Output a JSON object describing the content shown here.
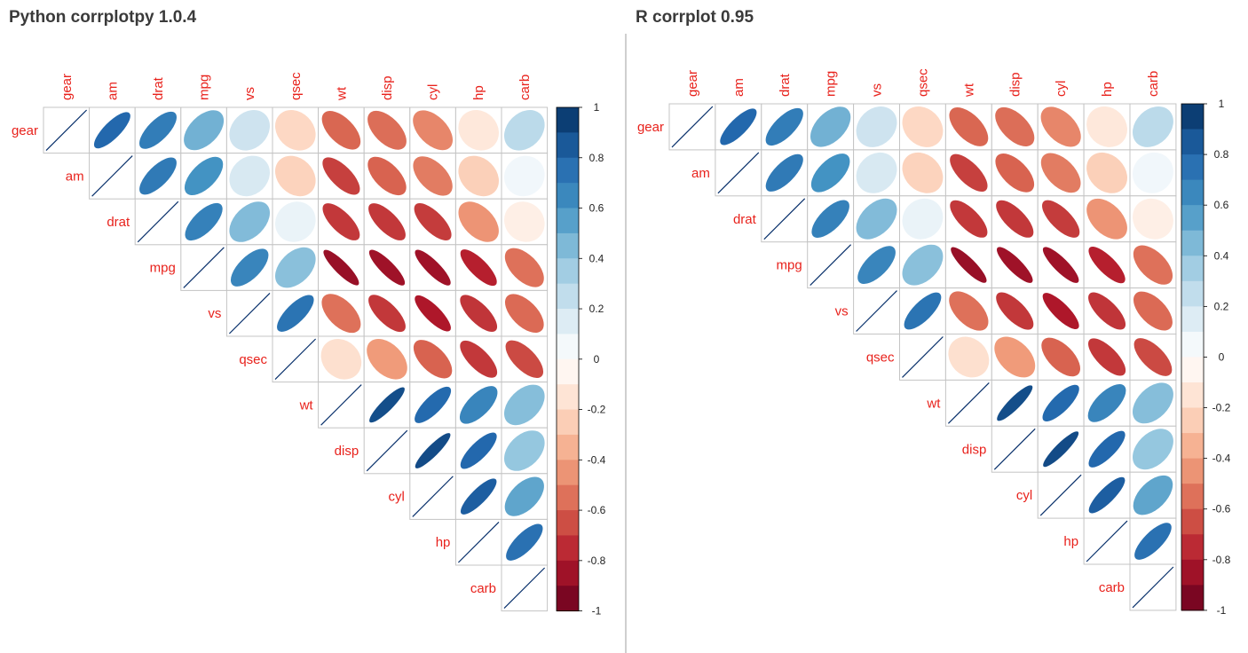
{
  "panels": {
    "left": {
      "title": "Python corrplotpy 1.0.4"
    },
    "right": {
      "title": "R corrplot 0.95"
    }
  },
  "colors": {
    "label": "#e8221c",
    "grid": "#c4c4c4",
    "diag_line": "#08306b",
    "positive_end": "#053061",
    "negative_end": "#67001f",
    "zero": "#ffffff"
  },
  "chart_data": [
    {
      "type": "heatmap",
      "shape": "ellipse",
      "layout": "upper-triangle",
      "title": "Python corrplotpy 1.0.4",
      "variables": [
        "gear",
        "am",
        "drat",
        "mpg",
        "vs",
        "qsec",
        "wt",
        "disp",
        "cyl",
        "hp",
        "carb"
      ],
      "matrix": [
        [
          1.0,
          0.79,
          0.7,
          0.48,
          0.21,
          -0.21,
          -0.58,
          -0.56,
          -0.49,
          -0.13,
          0.27
        ],
        [
          0.79,
          1.0,
          0.71,
          0.6,
          0.17,
          -0.23,
          -0.69,
          -0.59,
          -0.52,
          -0.24,
          0.06
        ],
        [
          0.7,
          0.71,
          1.0,
          0.68,
          0.44,
          0.09,
          -0.71,
          -0.71,
          -0.7,
          -0.45,
          -0.09
        ],
        [
          0.48,
          0.6,
          0.68,
          1.0,
          0.66,
          0.42,
          -0.87,
          -0.85,
          -0.85,
          -0.78,
          -0.55
        ],
        [
          0.21,
          0.17,
          0.44,
          0.66,
          1.0,
          0.74,
          -0.55,
          -0.71,
          -0.81,
          -0.72,
          -0.57
        ],
        [
          -0.21,
          -0.23,
          0.09,
          0.42,
          0.74,
          1.0,
          -0.17,
          -0.43,
          -0.59,
          -0.71,
          -0.66
        ],
        [
          -0.58,
          -0.69,
          -0.71,
          -0.87,
          -0.55,
          -0.17,
          1.0,
          0.89,
          0.78,
          0.66,
          0.43
        ],
        [
          -0.56,
          -0.59,
          -0.71,
          -0.85,
          -0.71,
          -0.43,
          0.89,
          1.0,
          0.9,
          0.79,
          0.39
        ],
        [
          -0.49,
          -0.52,
          -0.7,
          -0.85,
          -0.81,
          -0.59,
          0.78,
          0.9,
          1.0,
          0.83,
          0.53
        ],
        [
          -0.13,
          -0.24,
          -0.45,
          -0.78,
          -0.72,
          -0.71,
          0.66,
          0.79,
          0.83,
          1.0,
          0.75
        ],
        [
          0.27,
          0.06,
          -0.09,
          -0.55,
          -0.57,
          -0.66,
          0.43,
          0.39,
          0.53,
          0.75,
          1.0
        ]
      ],
      "colorbar": {
        "range": [
          -1,
          1
        ],
        "ticks": [
          "1",
          "0.8",
          "0.6",
          "0.4",
          "0.2",
          "0",
          "-0.2",
          "-0.4",
          "-0.6",
          "-0.8",
          "-1"
        ]
      }
    },
    {
      "type": "heatmap",
      "shape": "ellipse",
      "layout": "upper-triangle",
      "title": "R corrplot 0.95",
      "variables": [
        "gear",
        "am",
        "drat",
        "mpg",
        "vs",
        "qsec",
        "wt",
        "disp",
        "cyl",
        "hp",
        "carb"
      ],
      "matrix": [
        [
          1.0,
          0.79,
          0.7,
          0.48,
          0.21,
          -0.21,
          -0.58,
          -0.56,
          -0.49,
          -0.13,
          0.27
        ],
        [
          0.79,
          1.0,
          0.71,
          0.6,
          0.17,
          -0.23,
          -0.69,
          -0.59,
          -0.52,
          -0.24,
          0.06
        ],
        [
          0.7,
          0.71,
          1.0,
          0.68,
          0.44,
          0.09,
          -0.71,
          -0.71,
          -0.7,
          -0.45,
          -0.09
        ],
        [
          0.48,
          0.6,
          0.68,
          1.0,
          0.66,
          0.42,
          -0.87,
          -0.85,
          -0.85,
          -0.78,
          -0.55
        ],
        [
          0.21,
          0.17,
          0.44,
          0.66,
          1.0,
          0.74,
          -0.55,
          -0.71,
          -0.81,
          -0.72,
          -0.57
        ],
        [
          -0.21,
          -0.23,
          0.09,
          0.42,
          0.74,
          1.0,
          -0.17,
          -0.43,
          -0.59,
          -0.71,
          -0.66
        ],
        [
          -0.58,
          -0.69,
          -0.71,
          -0.87,
          -0.55,
          -0.17,
          1.0,
          0.89,
          0.78,
          0.66,
          0.43
        ],
        [
          -0.56,
          -0.59,
          -0.71,
          -0.85,
          -0.71,
          -0.43,
          0.89,
          1.0,
          0.9,
          0.79,
          0.39
        ],
        [
          -0.49,
          -0.52,
          -0.7,
          -0.85,
          -0.81,
          -0.59,
          0.78,
          0.9,
          1.0,
          0.83,
          0.53
        ],
        [
          -0.13,
          -0.24,
          -0.45,
          -0.78,
          -0.72,
          -0.71,
          0.66,
          0.79,
          0.83,
          1.0,
          0.75
        ],
        [
          0.27,
          0.06,
          -0.09,
          -0.55,
          -0.57,
          -0.66,
          0.43,
          0.39,
          0.53,
          0.75,
          1.0
        ]
      ],
      "colorbar": {
        "range": [
          -1,
          1
        ],
        "ticks": [
          "1",
          "0.8",
          "0.6",
          "0.4",
          "0.2",
          "0",
          "-0.2",
          "-0.4",
          "-0.6",
          "-0.8",
          "-1"
        ]
      }
    }
  ]
}
